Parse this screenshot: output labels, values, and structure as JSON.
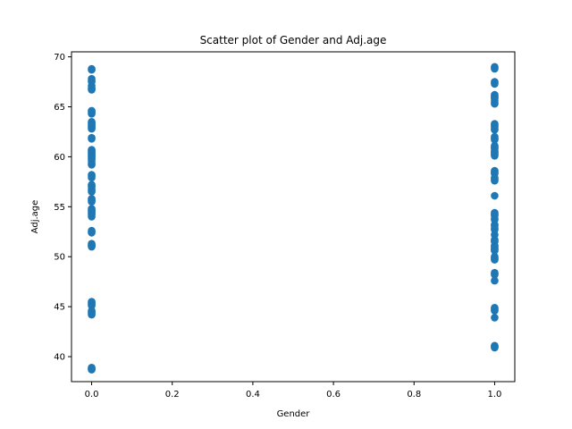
{
  "chart_data": {
    "type": "scatter",
    "title": "Scatter plot of Gender and Adj.age",
    "xlabel": "Gender",
    "ylabel": "Adj.age",
    "xlim": [
      -0.05,
      1.05
    ],
    "ylim": [
      37.5,
      70.5
    ],
    "xticks": [
      0.0,
      0.2,
      0.4,
      0.6,
      0.8,
      1.0
    ],
    "xtick_labels": [
      "0.0",
      "0.2",
      "0.4",
      "0.6",
      "0.8",
      "1.0"
    ],
    "yticks": [
      40,
      45,
      50,
      55,
      60,
      65,
      70
    ],
    "ytick_labels": [
      "40",
      "45",
      "50",
      "55",
      "60",
      "65",
      "70"
    ],
    "grid": false,
    "marker_color": "#1f77b4",
    "series": [
      {
        "x": [
          0,
          0,
          0,
          0,
          0,
          0,
          0,
          0,
          0,
          0,
          0,
          0,
          0,
          0,
          0,
          0,
          0,
          0,
          0,
          0,
          0,
          0,
          0,
          0,
          0,
          0,
          0,
          0,
          0,
          0,
          0,
          0,
          0,
          0,
          0,
          0,
          0,
          0,
          0,
          0,
          0,
          0,
          0,
          0,
          0,
          0,
          0,
          0,
          0,
          0,
          0,
          0,
          0,
          0,
          0,
          0,
          0,
          0,
          0,
          0,
          0,
          0,
          0,
          0,
          0,
          0,
          0,
          0,
          0,
          0,
          0,
          0,
          0,
          0,
          0,
          0,
          0,
          0,
          0,
          0
        ],
        "y": [
          68.8,
          67.8,
          67.5,
          67.1,
          66.9,
          66.7,
          64.5,
          64.3,
          63.5,
          63.2,
          63.0,
          62.8,
          61.9,
          60.7,
          60.5,
          60.3,
          60.1,
          59.8,
          59.5,
          59.2,
          58.1,
          57.9,
          57.1,
          56.8,
          56.5,
          55.8,
          55.5,
          54.8,
          54.5,
          54.3,
          54.0,
          52.5,
          51.2,
          51.0,
          45.4,
          45.2,
          44.5,
          44.3,
          38.9,
          38.7,
          68.7,
          67.6,
          64.4,
          63.3,
          60.6,
          60.2,
          59.7,
          58.2,
          57.0,
          55.7,
          54.7,
          54.2,
          51.1,
          45.3,
          44.4,
          38.8,
          66.8,
          62.9,
          60.4,
          59.3,
          56.6,
          54.6,
          52.4,
          51.3,
          45.5,
          44.6,
          64.6,
          63.4,
          61.8,
          60.0,
          59.9,
          57.2,
          55.6,
          54.4,
          52.6,
          51.1,
          45.1,
          44.2,
          38.8,
          63.1
        ]
      },
      {
        "x": [
          1,
          1,
          1,
          1,
          1,
          1,
          1,
          1,
          1,
          1,
          1,
          1,
          1,
          1,
          1,
          1,
          1,
          1,
          1,
          1,
          1,
          1,
          1,
          1,
          1,
          1,
          1,
          1,
          1,
          1,
          1,
          1,
          1,
          1,
          1,
          1,
          1,
          1,
          1,
          1,
          1,
          1,
          1,
          1,
          1,
          1,
          1,
          1,
          1,
          1,
          1,
          1,
          1,
          1,
          1,
          1,
          1,
          1,
          1,
          1,
          1,
          1,
          1,
          1,
          1,
          1,
          1,
          1,
          1,
          1,
          1,
          1,
          1,
          1,
          1,
          1,
          1,
          1,
          1,
          1
        ],
        "y": [
          69.0,
          68.8,
          67.5,
          67.3,
          66.1,
          65.9,
          65.6,
          65.3,
          63.3,
          63.0,
          62.7,
          61.9,
          61.7,
          61.1,
          60.8,
          60.5,
          60.3,
          60.1,
          58.6,
          58.3,
          57.8,
          57.6,
          56.1,
          54.4,
          54.1,
          53.7,
          53.2,
          52.7,
          52.2,
          51.6,
          51.1,
          50.8,
          50.6,
          50.0,
          49.7,
          48.4,
          48.2,
          47.6,
          44.9,
          44.6,
          43.9,
          41.1,
          40.9,
          68.9,
          67.4,
          66.0,
          65.4,
          63.2,
          62.8,
          61.8,
          61.0,
          60.6,
          60.2,
          58.5,
          57.7,
          54.3,
          53.8,
          52.8,
          51.5,
          51.0,
          50.7,
          49.8,
          48.3,
          44.7,
          41.0,
          66.2,
          65.8,
          63.1,
          62.0,
          60.9,
          60.4,
          58.4,
          57.9,
          54.2,
          53.1,
          51.7,
          50.9,
          49.9,
          44.8,
          41.0
        ]
      }
    ]
  }
}
